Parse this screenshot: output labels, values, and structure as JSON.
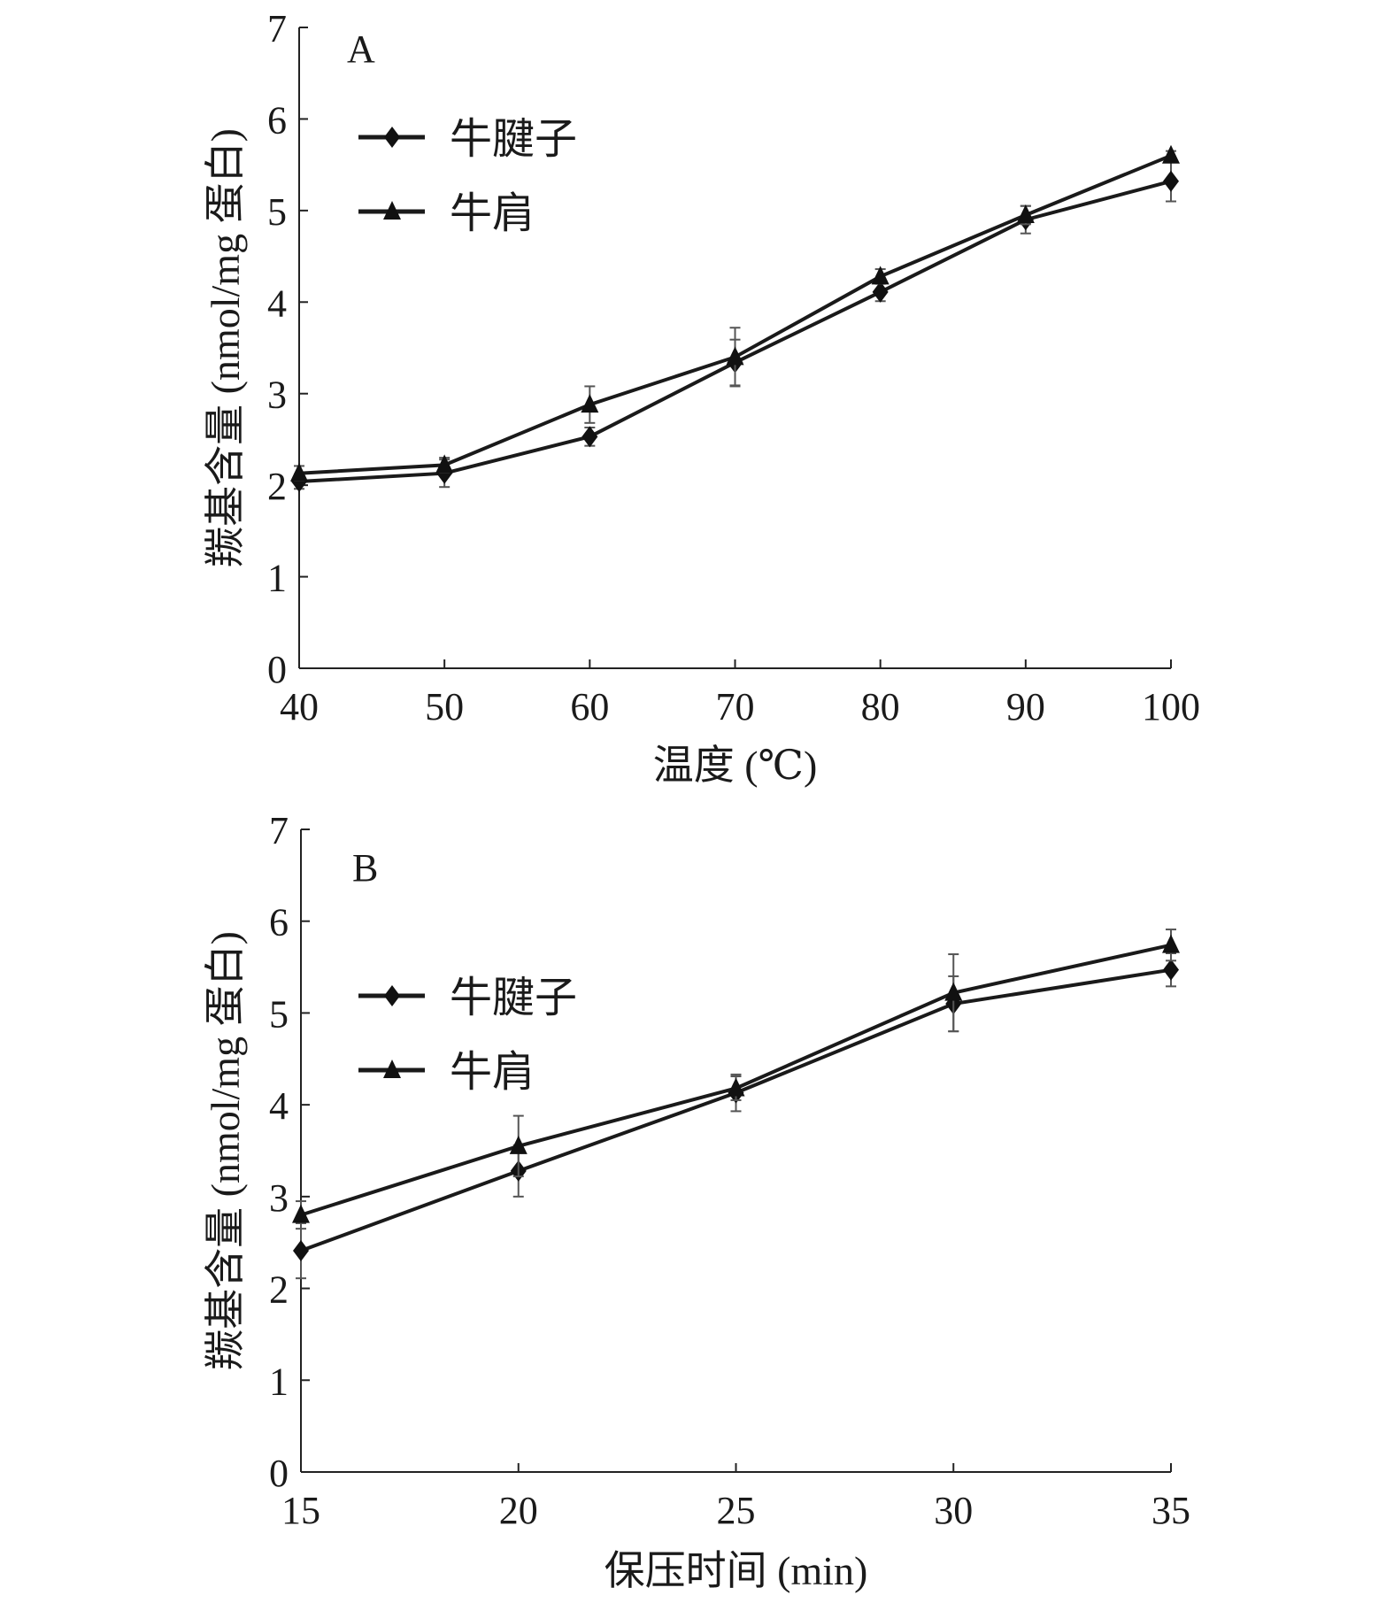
{
  "chart_data": [
    {
      "type": "line",
      "panel_label": "A",
      "xlabel": "温度 (℃)",
      "ylabel": "羰基含量 (nmol/mg 蛋白)",
      "x": [
        40,
        50,
        60,
        70,
        80,
        90,
        100
      ],
      "xticks": [
        "40",
        "50",
        "60",
        "70",
        "80",
        "90",
        "100"
      ],
      "yticks": [
        "0",
        "1",
        "2",
        "3",
        "4",
        "5",
        "6",
        "7"
      ],
      "xlim": [
        40,
        100
      ],
      "ylim": [
        0,
        7
      ],
      "grid": false,
      "legend_position": "top-left",
      "series": [
        {
          "name": "牛腱子",
          "marker": "diamond",
          "values": [
            2.04,
            2.13,
            2.53,
            3.34,
            4.11,
            4.9,
            5.32
          ],
          "errors": [
            0.08,
            0.15,
            0.1,
            0.25,
            0.1,
            0.15,
            0.22
          ]
        },
        {
          "name": "牛肩",
          "marker": "triangle",
          "values": [
            2.13,
            2.22,
            2.88,
            3.4,
            4.28,
            4.95,
            5.6
          ],
          "errors": [
            0.08,
            0.08,
            0.2,
            0.32,
            0.08,
            0.1,
            0.05
          ]
        }
      ]
    },
    {
      "type": "line",
      "panel_label": "B",
      "xlabel": "保压时间 (min)",
      "ylabel": "羰基含量 (nmol/mg 蛋白)",
      "x": [
        15,
        20,
        25,
        30,
        35
      ],
      "xticks": [
        "15",
        "20",
        "25",
        "30",
        "35"
      ],
      "yticks": [
        "0",
        "1",
        "2",
        "3",
        "4",
        "5",
        "6",
        "7"
      ],
      "xlim": [
        15,
        35
      ],
      "ylim": [
        0,
        7
      ],
      "grid": false,
      "legend_position": "top-left",
      "series": [
        {
          "name": "牛腱子",
          "marker": "diamond",
          "values": [
            2.41,
            3.28,
            4.13,
            5.1,
            5.47
          ],
          "errors": [
            0.3,
            0.28,
            0.2,
            0.3,
            0.18
          ]
        },
        {
          "name": "牛肩",
          "marker": "triangle",
          "values": [
            2.8,
            3.55,
            4.18,
            5.22,
            5.74
          ],
          "errors": [
            0.15,
            0.33,
            0.13,
            0.42,
            0.17
          ]
        }
      ]
    }
  ]
}
